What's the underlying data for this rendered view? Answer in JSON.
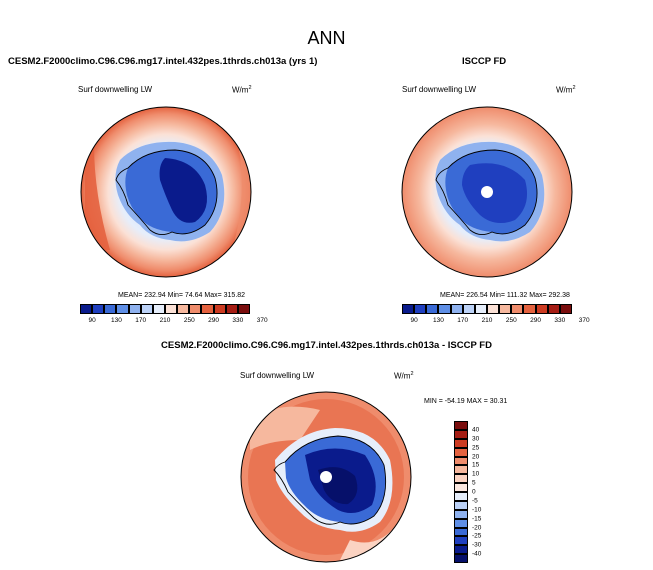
{
  "figure": {
    "title": "ANN",
    "left_panel": {
      "title": "CESM2.F2000climo.C96.C96.mg17.intel.432pes.1thrds.ch013a (yrs 1)",
      "variable": "Surf downwelling LW",
      "units": "W/m",
      "units_sup": "2",
      "stats": "MEAN= 232.94   Min=  74.64   Max= 315.82"
    },
    "right_panel": {
      "title": "ISCCP FD",
      "variable": "Surf downwelling LW",
      "units": "W/m",
      "units_sup": "2",
      "stats": "MEAN= 226.54   Min= 111.32   Max= 292.38"
    },
    "diff_panel": {
      "title": "CESM2.F2000climo.C96.C96.mg17.intel.432pes.1thrds.ch013a - ISCCP FD",
      "variable": "Surf downwelling LW",
      "units": "W/m",
      "units_sup": "2",
      "stats": "MIN = -54.19  MAX =  30.31"
    }
  },
  "chart_data": [
    {
      "type": "heatmap",
      "projection": "south-polar-stereographic",
      "title": "CESM2.F2000climo.C96.C96.mg17.intel.432pes.1thrds.ch013a (yrs 1)",
      "variable": "Surf downwelling LW",
      "units": "W/m2",
      "mean": 232.94,
      "min": 74.64,
      "max": 315.82,
      "colorbar_levels": [
        90,
        130,
        170,
        210,
        250,
        290,
        330,
        370
      ],
      "colors": [
        "#0a1b8c",
        "#1f3fbf",
        "#3a6ad6",
        "#5f8fe6",
        "#8fb2ef",
        "#bcd2f7",
        "#e6eefb",
        "#fbe1d6",
        "#f6b89e",
        "#ef8c6c",
        "#e4623f",
        "#cc3b22",
        "#a51d14",
        "#7a0d0d"
      ],
      "regions": {
        "antarctic_interior": 90,
        "antarctic_coast": 160,
        "sea_ice_zone": 230,
        "southern_ocean": 280,
        "midlatitude": 310
      }
    },
    {
      "type": "heatmap",
      "projection": "south-polar-stereographic",
      "title": "ISCCP FD",
      "variable": "Surf downwelling LW",
      "units": "W/m2",
      "mean": 226.54,
      "min": 111.32,
      "max": 292.38,
      "colorbar_levels": [
        90,
        130,
        170,
        210,
        250,
        290,
        330,
        370
      ],
      "regions": {
        "antarctic_interior": 120,
        "antarctic_coast": 170,
        "sea_ice_zone": 235,
        "southern_ocean": 270,
        "midlatitude": 290
      }
    },
    {
      "type": "heatmap",
      "projection": "south-polar-stereographic",
      "title": "CESM2.F2000climo.C96.C96.mg17.intel.432pes.1thrds.ch013a - ISCCP FD",
      "variable": "Surf downwelling LW",
      "units": "W/m2",
      "min": -54.19,
      "max": 30.31,
      "colorbar_levels": [
        40,
        30,
        25,
        20,
        15,
        10,
        5,
        0,
        -5,
        -10,
        -15,
        -20,
        -25,
        -30,
        -40
      ],
      "colors": [
        "#7a0d0d",
        "#a51d14",
        "#cc3b22",
        "#e4623f",
        "#ef8c6c",
        "#f6b89e",
        "#fbd3c2",
        "#fbe8e0",
        "#e6eefb",
        "#bcd2f7",
        "#8fb2ef",
        "#5f8fe6",
        "#3a6ad6",
        "#1f3fbf",
        "#0a1b8c",
        "#06106a"
      ],
      "regions": {
        "antarctic_interior": -35,
        "antarctic_coast": -15,
        "sea_ice_zone": 5,
        "southern_ocean": 15,
        "midlatitude": 20
      }
    }
  ]
}
